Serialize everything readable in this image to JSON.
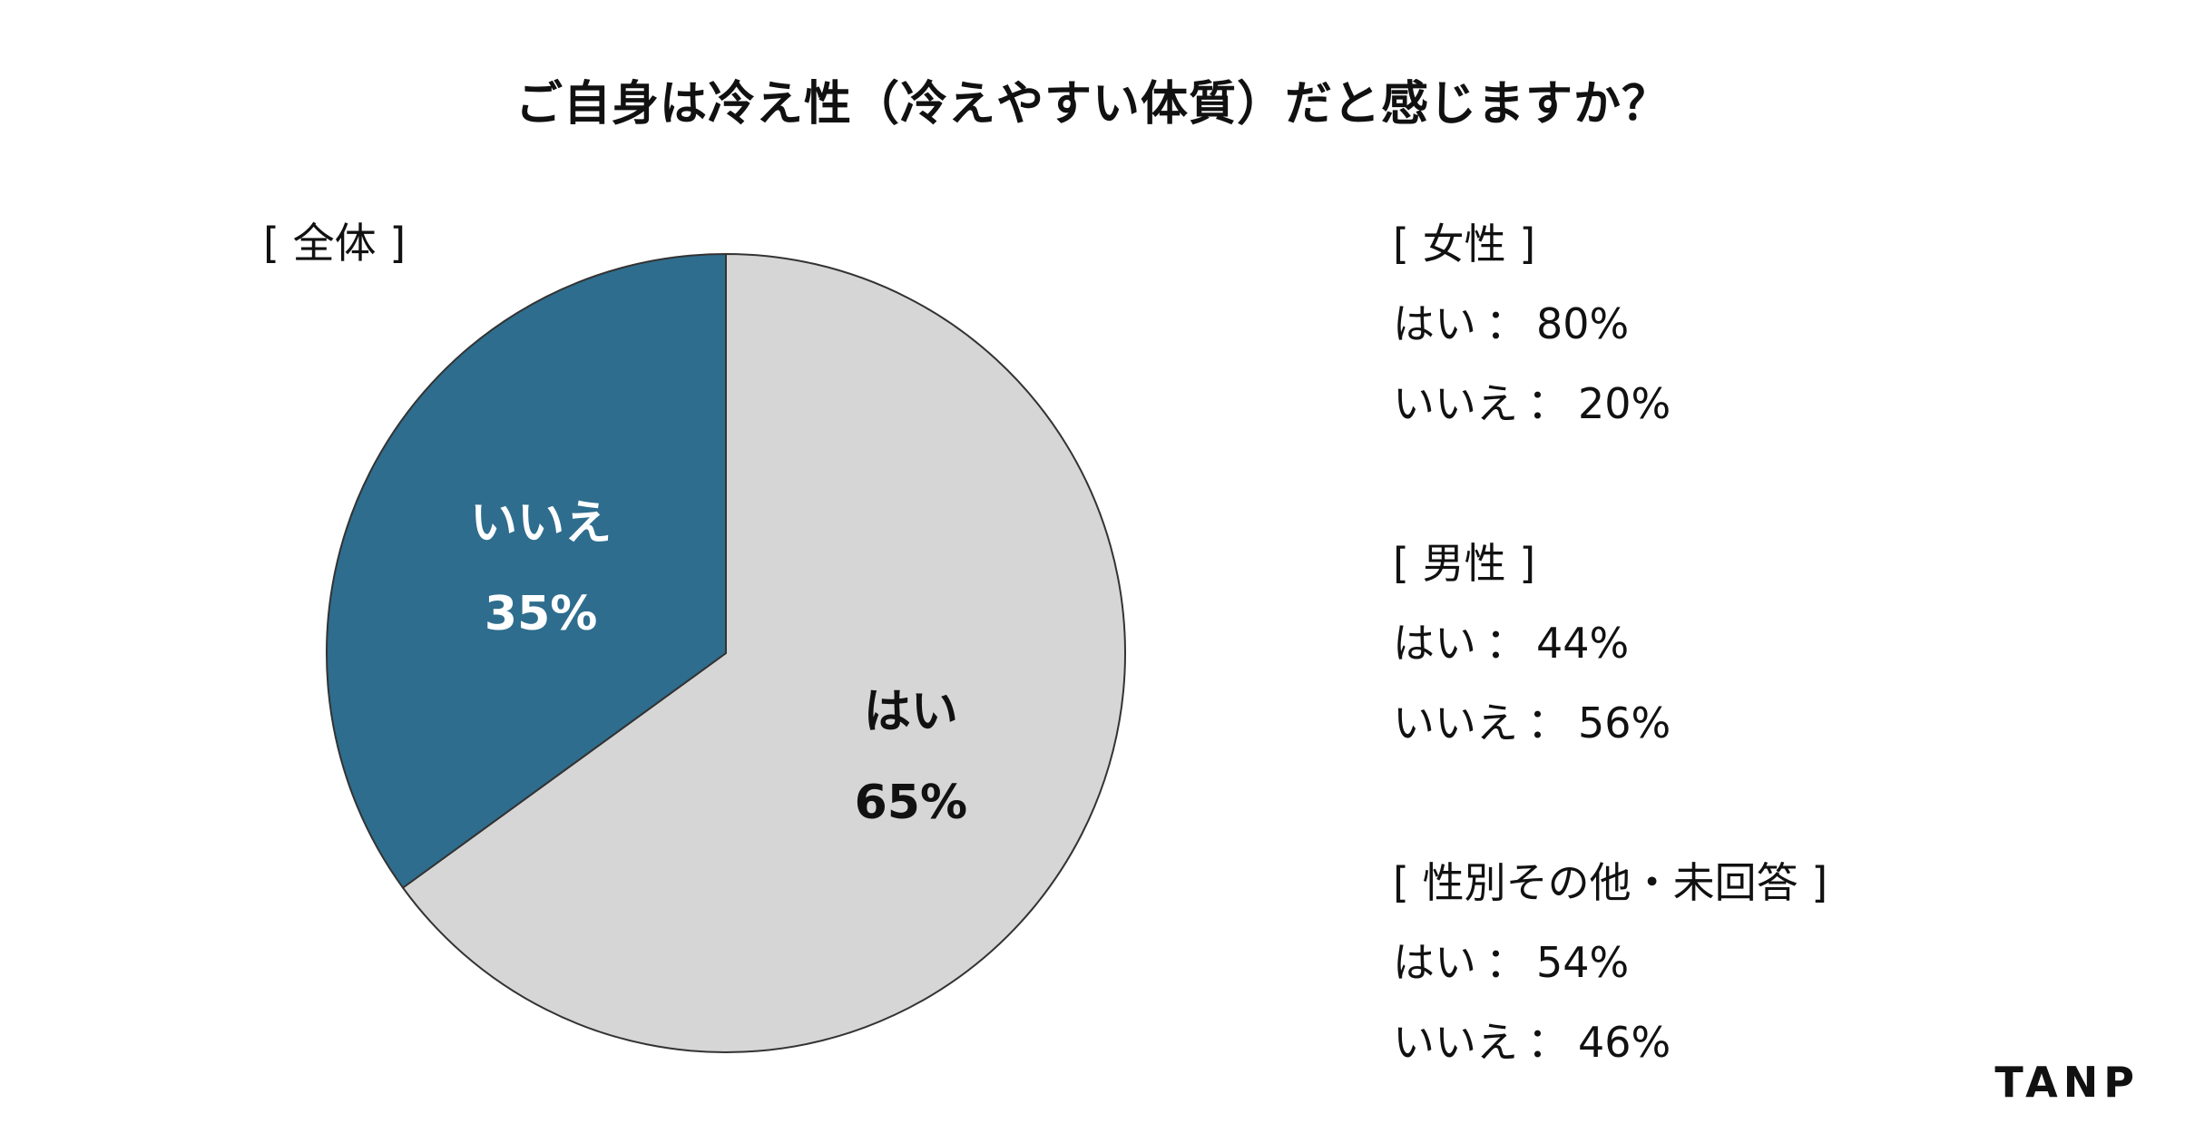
{
  "title": "ご自身は冷え性（冷えやすい体質）だと感じますか？",
  "colors": {
    "yes": "#d6d6d6",
    "no": "#2e6d8e",
    "outline": "#333333"
  },
  "chart_data": {
    "type": "pie",
    "title": "[ 全体 ]",
    "slices": [
      {
        "label": "はい",
        "value": 65,
        "display": "65%"
      },
      {
        "label": "いいえ",
        "value": 35,
        "display": "35%"
      }
    ]
  },
  "breakdown": {
    "female": {
      "heading": "[ 女性 ]",
      "yes": {
        "label": "はい",
        "value": "80%"
      },
      "no": {
        "label": "いいえ",
        "value": "20%"
      }
    },
    "male": {
      "heading": "[ 男性 ]",
      "yes": {
        "label": "はい",
        "value": "44%"
      },
      "no": {
        "label": "いいえ",
        "value": "56%"
      }
    },
    "other": {
      "heading": "[ 性別その他・未回答 ]",
      "yes": {
        "label": "はい",
        "value": "54%"
      },
      "no": {
        "label": "いいえ",
        "value": "46%"
      }
    },
    "separator": "："
  },
  "brand": "TANP"
}
